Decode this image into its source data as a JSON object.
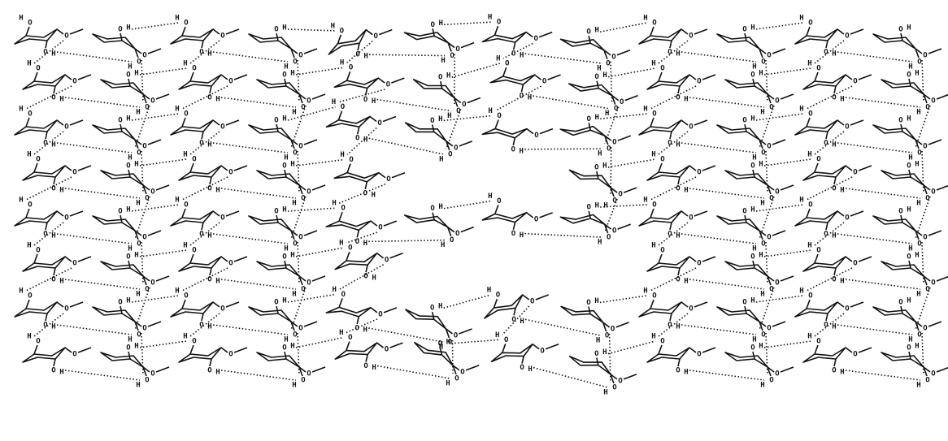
{
  "atom_labels": {
    "oxygen": "O",
    "hydrogen": "H"
  }
}
